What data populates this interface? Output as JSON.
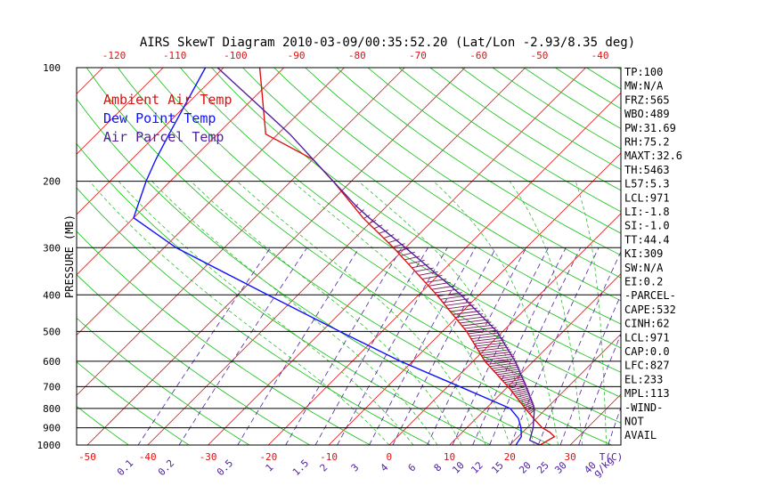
{
  "chart_data": {
    "type": "line",
    "title": "AIRS SkewT Diagram 2010-03-09/00:35:52.20 (Lat/Lon -2.93/8.35 deg)",
    "ylabel": "PRESSURE (MB)",
    "xlabel": "T(C)",
    "mixing_ratio_unit": "g/kg",
    "y_scale": "log",
    "ylim": [
      1000,
      100
    ],
    "xlim_bottom": [
      -50,
      40
    ],
    "xlim_top": [
      -120,
      -40
    ],
    "pressure_ticks": [
      100,
      200,
      300,
      400,
      500,
      600,
      700,
      800,
      900,
      1000
    ],
    "pressure_gridlines": [
      200,
      300,
      400,
      500,
      600,
      700,
      800,
      900
    ],
    "bottom_temp_ticks": [
      -50,
      -40,
      -30,
      -20,
      -10,
      0,
      10,
      20,
      30
    ],
    "top_temp_ticks": [
      -120,
      -110,
      -100,
      -90,
      -80,
      -70,
      -60,
      -50,
      -40
    ],
    "mixing_ratio_labels": [
      "0.1",
      "0.2",
      "0.5",
      "1",
      "1.5",
      "2",
      "3",
      "4",
      "6",
      "8",
      "10",
      "12",
      "15",
      "20",
      "25",
      "30",
      "40"
    ],
    "legend": [
      {
        "name": "Ambient Air Temp",
        "color": "#e01010"
      },
      {
        "name": "Dew Point Temp",
        "color": "#1010ff"
      },
      {
        "name": "Air Parcel Temp",
        "color": "#5020a0"
      }
    ],
    "series": [
      {
        "name": "Ambient Air Temp",
        "color": "#e01010",
        "points": [
          [
            1000,
            25
          ],
          [
            950,
            26
          ],
          [
            925,
            24.5
          ],
          [
            900,
            22.5
          ],
          [
            850,
            19.5
          ],
          [
            800,
            16.5
          ],
          [
            700,
            10
          ],
          [
            600,
            2
          ],
          [
            500,
            -6
          ],
          [
            400,
            -17
          ],
          [
            300,
            -32
          ],
          [
            250,
            -42
          ],
          [
            200,
            -53
          ],
          [
            175,
            -60
          ],
          [
            150,
            -72
          ],
          [
            100,
            -84
          ]
        ]
      },
      {
        "name": "Dew Point Temp",
        "color": "#1010ff",
        "points": [
          [
            1000,
            21
          ],
          [
            950,
            20.5
          ],
          [
            900,
            19
          ],
          [
            850,
            17
          ],
          [
            800,
            14
          ],
          [
            700,
            2
          ],
          [
            600,
            -12
          ],
          [
            500,
            -27
          ],
          [
            400,
            -45
          ],
          [
            300,
            -68
          ],
          [
            250,
            -80
          ],
          [
            200,
            -84
          ],
          [
            175,
            -86
          ],
          [
            150,
            -88
          ],
          [
            100,
            -93
          ]
        ]
      },
      {
        "name": "Air Parcel Temp",
        "color": "#5020a0",
        "points": [
          [
            1000,
            25
          ],
          [
            971,
            22.5
          ],
          [
            900,
            21
          ],
          [
            800,
            18
          ],
          [
            700,
            13
          ],
          [
            600,
            7
          ],
          [
            500,
            -1
          ],
          [
            400,
            -13
          ],
          [
            300,
            -30
          ],
          [
            250,
            -41
          ],
          [
            233,
            -45
          ],
          [
            200,
            -53
          ],
          [
            150,
            -68
          ],
          [
            100,
            -91
          ]
        ]
      }
    ],
    "cape_region": {
      "from_mb": 827,
      "to_mb": 233
    }
  },
  "indices": [
    "TP:100",
    "MW:N/A",
    "FRZ:565",
    "WBO:489",
    "PW:31.69",
    "RH:75.2",
    "MAXT:32.6",
    "TH:5463",
    "L57:5.3",
    "LCL:971",
    "LI:-1.8",
    "SI:-1.0",
    "TT:44.4",
    "KI:309",
    "SW:N/A",
    "EI:0.2",
    "-PARCEL-",
    "CAPE:532",
    "CINH:62",
    "LCL:971",
    "CAP:0.0",
    "LFC:827",
    "EL:233",
    "MPL:113",
    "-WIND-",
    "NOT",
    "AVAIL"
  ],
  "colors": {
    "isotherm": "#e01010",
    "dry_adiabat": "#10c010",
    "moist_adiabat": "#30c030",
    "mixing_ratio": "#5020a0",
    "frame": "#000000"
  }
}
